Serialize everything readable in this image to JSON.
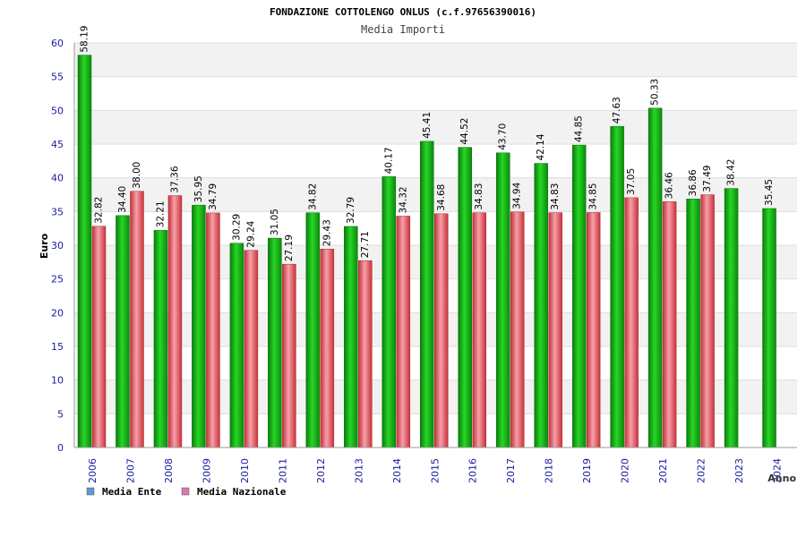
{
  "chart_data": {
    "type": "bar",
    "title": "FONDAZIONE COTTOLENGO ONLUS (c.f.97656390016)",
    "subtitle": "Media Importi",
    "ylabel": "Euro",
    "xlabel": "Anno",
    "ylim": [
      0,
      60
    ],
    "yticks": [
      0,
      5,
      10,
      15,
      20,
      25,
      30,
      35,
      40,
      45,
      50,
      55,
      60
    ],
    "grid": true,
    "legend_position": "bottom-left",
    "categories": [
      "2006",
      "2007",
      "2008",
      "2009",
      "2010",
      "2011",
      "2012",
      "2013",
      "2014",
      "2015",
      "2016",
      "2017",
      "2018",
      "2019",
      "2020",
      "2021",
      "2022",
      "2023",
      "2024"
    ],
    "series": [
      {
        "name": "Media Ente",
        "color": "#1fa81f",
        "legend_color": "#5b9bd5",
        "values": [
          58.19,
          34.4,
          32.21,
          35.95,
          30.29,
          31.05,
          34.82,
          32.79,
          40.17,
          45.41,
          44.52,
          43.7,
          42.14,
          44.85,
          47.63,
          50.33,
          36.86,
          38.42,
          35.45
        ],
        "labels": [
          "58.19",
          "34.40",
          "32.21",
          "35.95",
          "30.29",
          "31.05",
          "34.82",
          "32.79",
          "40.17",
          "45.41",
          "44.52",
          "43.70",
          "42.14",
          "44.85",
          "47.63",
          "50.33",
          "36.86",
          "38.42",
          "35.45"
        ]
      },
      {
        "name": "Media Nazionale",
        "color": "#e0505a",
        "legend_color": "#d97ab0",
        "values": [
          32.82,
          38.0,
          37.36,
          34.79,
          29.24,
          27.19,
          29.43,
          27.71,
          34.32,
          34.68,
          34.83,
          34.94,
          34.83,
          34.85,
          37.05,
          36.46,
          37.49,
          null,
          null
        ],
        "labels": [
          "32.82",
          "38.00",
          "37.36",
          "34.79",
          "29.24",
          "27.19",
          "29.43",
          "27.71",
          "34.32",
          "34.68",
          "34.83",
          "34.94",
          "34.83",
          "34.85",
          "37.05",
          "36.46",
          "37.49",
          null,
          null
        ]
      }
    ]
  }
}
